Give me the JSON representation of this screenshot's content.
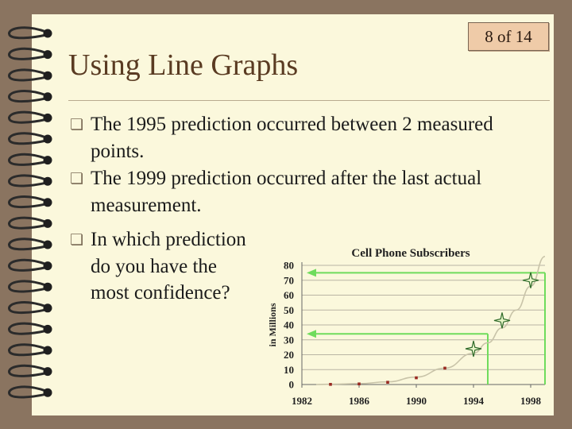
{
  "slide": {
    "counter": "8 of 14",
    "title": "Using Line Graphs",
    "bullets": [
      {
        "icon": "square-bullet-icon",
        "text": "The 1995 prediction occurred between 2 measured points."
      },
      {
        "icon": "square-bullet-icon",
        "text": "The 1999 prediction occurred after the last actual measurement."
      },
      {
        "icon": "square-bullet-icon",
        "text": "In which prediction do you have the most confidence?"
      }
    ],
    "colors": {
      "paper": "#fbf8dc",
      "border": "#8a7460",
      "title": "#5a3b22",
      "highlight": "#6fdc5c"
    }
  },
  "chart_data": {
    "type": "line",
    "title": "Cell Phone Subscribers",
    "ylabel": "in Millions",
    "xlabel": "",
    "xlim": [
      1982,
      1999
    ],
    "ylim": [
      0,
      80
    ],
    "x_ticks": [
      "1982",
      "1986",
      "1990",
      "1994",
      "1998"
    ],
    "y_ticks": [
      "0",
      "10",
      "20",
      "30",
      "40",
      "50",
      "60",
      "70",
      "80"
    ],
    "grid": "horizontal",
    "measured": {
      "x": [
        1984,
        1986,
        1988,
        1990,
        1992
      ],
      "y": [
        0.1,
        0.4,
        1.5,
        4.5,
        11
      ]
    },
    "trend": {
      "x": [
        1983,
        1984,
        1986,
        1988,
        1990,
        1992,
        1994,
        1995,
        1996,
        1997,
        1998,
        1999
      ],
      "y": [
        0,
        0.2,
        0.6,
        1.8,
        5,
        11,
        21,
        28,
        38,
        50,
        66,
        86
      ]
    },
    "predictions": [
      {
        "x": 1994,
        "y": 24
      },
      {
        "x": 1996,
        "y": 43
      },
      {
        "x": 1998,
        "y": 70
      }
    ],
    "highlight_lines": [
      {
        "x": 1995,
        "y": 34
      },
      {
        "x": 1999,
        "y": 75
      }
    ]
  }
}
